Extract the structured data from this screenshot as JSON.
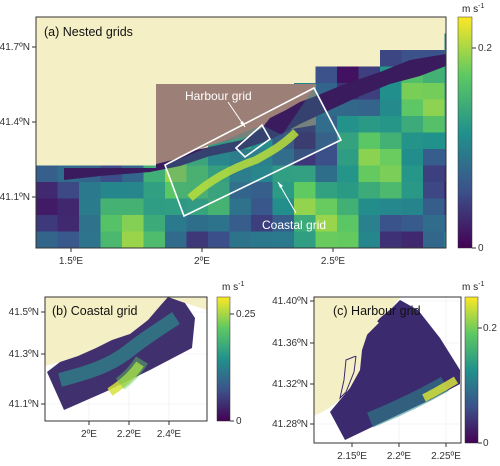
{
  "colors": {
    "land": "#f4efc5",
    "coarse_land": "#9c7f76",
    "frame": "#333333",
    "box": "#ffffff"
  },
  "colormap": [
    "#440154",
    "#3b528b",
    "#21918c",
    "#5ec962",
    "#fde725"
  ],
  "panels": {
    "a": {
      "title": "(a) Nested grids",
      "lat_ticks": [
        "41.7ºN",
        "41.4ºN",
        "41.1ºN"
      ],
      "lon_ticks": [
        "1.5ºE",
        "2ºE",
        "2.5ºE"
      ],
      "annotations": {
        "harbour": "Harbour grid",
        "coastal": "Coastal grid"
      },
      "colorbar": {
        "unit": "m s",
        "unit_exp": "-1",
        "ticks": [
          "0.2",
          "0"
        ]
      }
    },
    "b": {
      "title": "(b) Coastal grid",
      "lat_ticks": [
        "41.5ºN",
        "41.3ºN",
        "41.1ºN"
      ],
      "lon_ticks": [
        "2ºE",
        "2.2ºE",
        "2.4ºE"
      ],
      "colorbar": {
        "unit": "m s",
        "unit_exp": "-1",
        "ticks": [
          "0.25",
          "0"
        ]
      }
    },
    "c": {
      "title": "(c) Harbour grid",
      "lat_ticks": [
        "41.40ºN",
        "41.36ºN",
        "41.32ºN",
        "41.28ºN"
      ],
      "lon_ticks": [
        "2.15ºE",
        "2.2ºE",
        "2.25ºE"
      ],
      "colorbar": {
        "unit": "m s",
        "unit_exp": "-1",
        "ticks": [
          "0.2",
          "0"
        ]
      }
    }
  }
}
